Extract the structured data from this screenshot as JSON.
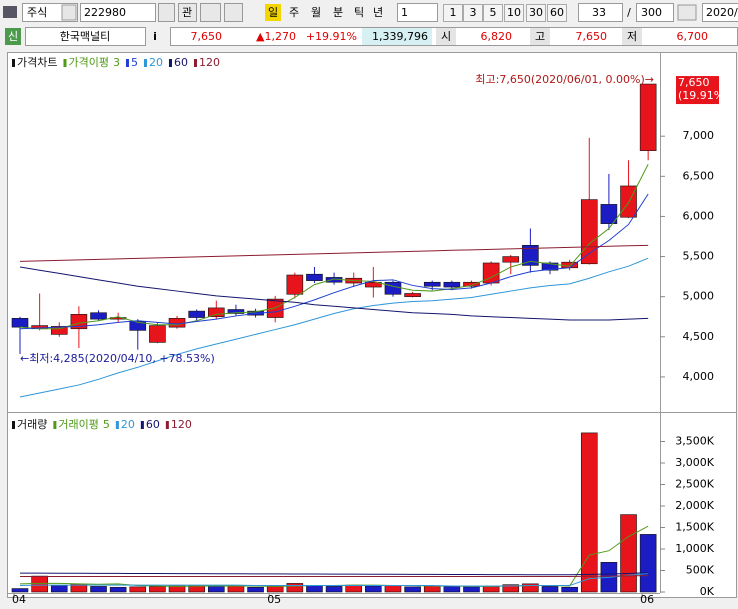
{
  "toolbar": {
    "market": "주식",
    "code": "222980",
    "interest": "관",
    "periods": [
      "일",
      "주",
      "월",
      "분",
      "틱",
      "년"
    ],
    "unit": "1",
    "quick_units": [
      "1",
      "3",
      "5",
      "10",
      "30",
      "60"
    ],
    "count": "33",
    "separator": "/",
    "max_count": "300",
    "date": "2020/"
  },
  "stock_bar": {
    "badge": "신",
    "name": "한국맥널티",
    "info": "i",
    "price": "7,650",
    "change": "▲1,270",
    "rate": "+19.91%",
    "volume": "1,339,796",
    "open_label": "시",
    "open": "6,820",
    "high_label": "고",
    "high": "7,650",
    "low_label": "저",
    "low": "6,700"
  },
  "chart_data": [
    {
      "type": "candlestick",
      "legend_title": "가격차트",
      "ma_title": "가격이평",
      "open": [
        4730,
        4600,
        4530,
        4600,
        4800,
        4720,
        4690,
        4430,
        4620,
        4820,
        4750,
        4840,
        4820,
        4740,
        5030,
        5280,
        5240,
        5170,
        5120,
        5180,
        5000,
        5180,
        5180,
        5130,
        5170,
        5430,
        5640,
        5420,
        5360,
        5410,
        6150,
        5990,
        6820
      ],
      "high": [
        4750,
        5040,
        4680,
        4880,
        4830,
        4800,
        4720,
        4680,
        4760,
        4840,
        4950,
        4900,
        4850,
        5010,
        5300,
        5370,
        5300,
        5300,
        5370,
        5200,
        5060,
        5200,
        5200,
        5200,
        5440,
        5520,
        5850,
        5440,
        5460,
        6980,
        6530,
        6700,
        7650
      ],
      "low": [
        4285,
        4580,
        4500,
        4360,
        4700,
        4680,
        4340,
        4420,
        4600,
        4700,
        4720,
        4760,
        4740,
        4680,
        4980,
        5170,
        5150,
        5120,
        4990,
        5000,
        4990,
        5080,
        5080,
        5100,
        5140,
        5280,
        5300,
        5280,
        5330,
        5400,
        5830,
        5980,
        6700
      ],
      "close": [
        4620,
        4640,
        4630,
        4780,
        4720,
        4740,
        4580,
        4640,
        4730,
        4740,
        4860,
        4790,
        4770,
        4970,
        5270,
        5200,
        5180,
        5230,
        5180,
        5030,
        5040,
        5130,
        5120,
        5180,
        5420,
        5500,
        5390,
        5330,
        5430,
        6210,
        5910,
        6380,
        7650
      ],
      "up_color": "#e8141c",
      "down_color": "#1c1cc4",
      "series": [
        {
          "name": "3",
          "color": "#4f9a16",
          "values": [
            4620,
            4600,
            4600,
            4670,
            4700,
            4750,
            4680,
            4650,
            4650,
            4700,
            4780,
            4800,
            4810,
            4860,
            4990,
            5150,
            5220,
            5200,
            5190,
            5130,
            5080,
            5070,
            5100,
            5140,
            5240,
            5370,
            5440,
            5410,
            5380,
            5660,
            5850,
            6170,
            6650
          ]
        },
        {
          "name": "5",
          "color": "#1f3fd0",
          "values": [
            4600,
            4610,
            4620,
            4630,
            4650,
            4680,
            4700,
            4680,
            4660,
            4690,
            4720,
            4760,
            4790,
            4810,
            4880,
            4960,
            5050,
            5130,
            5200,
            5210,
            5140,
            5100,
            5090,
            5110,
            5170,
            5250,
            5310,
            5340,
            5360,
            5540,
            5700,
            5900,
            6280
          ]
        },
        {
          "name": "20",
          "color": "#2f96d8",
          "values": [
            3750,
            3800,
            3850,
            3900,
            3970,
            4050,
            4120,
            4200,
            4280,
            4350,
            4410,
            4470,
            4530,
            4590,
            4650,
            4720,
            4790,
            4850,
            4890,
            4920,
            4940,
            4950,
            4970,
            4990,
            5030,
            5070,
            5110,
            5140,
            5160,
            5230,
            5310,
            5380,
            5480
          ]
        },
        {
          "name": "60",
          "color": "#14146e",
          "values": [
            5370,
            5330,
            5290,
            5250,
            5210,
            5170,
            5130,
            5100,
            5070,
            5040,
            5010,
            4990,
            4970,
            4950,
            4930,
            4900,
            4880,
            4860,
            4840,
            4820,
            4800,
            4790,
            4780,
            4760,
            4750,
            4740,
            4730,
            4720,
            4710,
            4710,
            4710,
            4720,
            4730
          ]
        },
        {
          "name": "120",
          "color": "#8c1c30",
          "values": [
            5440,
            5446,
            5452,
            5459,
            5465,
            5471,
            5478,
            5484,
            5490,
            5496,
            5502,
            5509,
            5515,
            5521,
            5528,
            5534,
            5540,
            5546,
            5552,
            5559,
            5565,
            5571,
            5578,
            5584,
            5590,
            5596,
            5602,
            5609,
            5615,
            5621,
            5628,
            5634,
            5640
          ]
        }
      ],
      "ylim": [
        3650,
        7850
      ],
      "yticks": [
        {
          "value": 4000,
          "label": "4,000"
        },
        {
          "value": 4500,
          "label": "4,500"
        },
        {
          "value": 5000,
          "label": "5,000"
        },
        {
          "value": 5500,
          "label": "5,500"
        },
        {
          "value": 6000,
          "label": "6,000"
        },
        {
          "value": 6500,
          "label": "6,500"
        },
        {
          "value": 7000,
          "label": "7,000"
        }
      ],
      "last_label": "7,650",
      "last_change_label": "(19.91%)",
      "annotations": [
        "최고:7,650(2020/06/01, 0.00%)→",
        "←최저:4,285(2020/04/10, +78.53%)"
      ]
    },
    {
      "type": "bar",
      "legend_title": "거래량",
      "ma_title": "거래이평",
      "categories": [
        "04",
        null,
        null,
        null,
        null,
        null,
        null,
        null,
        null,
        null,
        null,
        null,
        null,
        "05",
        null,
        null,
        null,
        null,
        null,
        null,
        null,
        null,
        null,
        null,
        null,
        null,
        null,
        null,
        null,
        null,
        null,
        null,
        "06"
      ],
      "values": [
        80000,
        370000,
        150000,
        190000,
        130000,
        110000,
        120000,
        130000,
        140000,
        150000,
        140000,
        150000,
        110000,
        140000,
        200000,
        150000,
        130000,
        160000,
        140000,
        150000,
        120000,
        140000,
        130000,
        120000,
        130000,
        170000,
        190000,
        130000,
        110000,
        3700000,
        690000,
        1800000,
        1339796
      ],
      "up_color": "#e8141c",
      "down_color": "#1c1cc4",
      "series": [
        {
          "name": "5",
          "color": "#4f9a16",
          "values": [
            190000,
            200000,
            200000,
            190000,
            180000,
            190000,
            150000,
            140000,
            130000,
            140000,
            140000,
            140000,
            140000,
            130000,
            140000,
            150000,
            150000,
            160000,
            160000,
            150000,
            150000,
            140000,
            140000,
            130000,
            130000,
            140000,
            150000,
            150000,
            140000,
            860000,
            960000,
            1290000,
            1530000
          ]
        },
        {
          "name": "20",
          "color": "#2f96d8",
          "values": [
            150000,
            160000,
            160000,
            160000,
            160000,
            160000,
            160000,
            160000,
            160000,
            160000,
            160000,
            160000,
            150000,
            150000,
            150000,
            150000,
            150000,
            150000,
            150000,
            150000,
            150000,
            150000,
            140000,
            140000,
            140000,
            140000,
            150000,
            150000,
            150000,
            310000,
            340000,
            390000,
            430000
          ]
        },
        {
          "name": "60",
          "color": "#14146e",
          "values": [
            440000,
            438000,
            437000,
            435000,
            434000,
            432000,
            431000,
            430000,
            428000,
            427000,
            425000,
            424000,
            422000,
            421000,
            420000,
            418000,
            417000,
            415000,
            414000,
            412000,
            411000,
            410000,
            408000,
            407000,
            405000,
            404000,
            402000,
            401000,
            400000,
            410000,
            420000,
            430000,
            450000
          ]
        },
        {
          "name": "120",
          "color": "#8c1c30",
          "values": [
            360000,
            360000,
            360000,
            360000,
            360000,
            360000,
            360000,
            360000,
            360000,
            360000,
            360000,
            360000,
            360000,
            360000,
            360000,
            360000,
            360000,
            360000,
            360000,
            360000,
            360000,
            360000,
            360000,
            360000,
            360000,
            360000,
            360000,
            360000,
            360000,
            365000,
            370000,
            375000,
            380000
          ]
        }
      ],
      "ylim": [
        0,
        4000000
      ],
      "yticks": [
        {
          "value": 0,
          "label": "0K"
        },
        {
          "value": 500000,
          "label": "500K"
        },
        {
          "value": 1000000,
          "label": "1,000K"
        },
        {
          "value": 1500000,
          "label": "1,500K"
        },
        {
          "value": 2000000,
          "label": "2,000K"
        },
        {
          "value": 2500000,
          "label": "2,500K"
        },
        {
          "value": 3000000,
          "label": "3,000K"
        },
        {
          "value": 3500000,
          "label": "3,500K"
        }
      ]
    }
  ]
}
